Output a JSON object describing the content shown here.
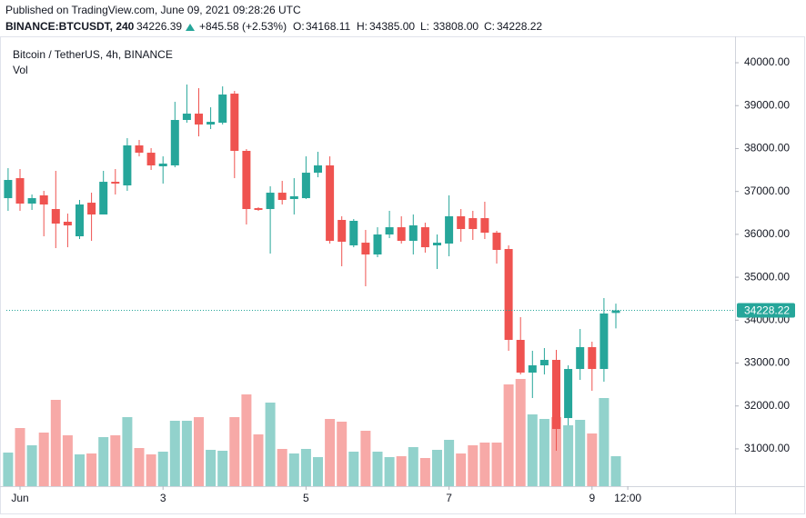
{
  "chart_data": {
    "type": "candlestick",
    "published": "Published on TradingView.com, June 09, 2021 09:28:26 UTC",
    "symbol": "BINANCE:BTCUSDT, 240",
    "last_price": 34226.39,
    "change": "+845.58 (+2.53%)",
    "ohlc_legend": [
      {
        "label": "O:",
        "value": "34168.11"
      },
      {
        "label": "H:",
        "value": "34385.00"
      },
      {
        "label": "L:",
        "value": "33808.00"
      },
      {
        "label": "C:",
        "value": "34228.22"
      }
    ],
    "title": "Bitcoin / TetherUS, 4h, BINANCE",
    "volume_label": "Vol",
    "up_color": "#26a69a",
    "down_color": "#ef5350",
    "volume_up_color": "#92d2cc",
    "volume_down_color": "#f7a9a7",
    "x": [
      -4,
      0,
      4,
      8,
      12,
      16,
      20,
      24,
      28,
      32,
      36,
      40,
      44,
      48,
      52,
      56,
      60,
      64,
      68,
      72,
      76,
      80,
      84,
      88,
      92,
      96,
      100,
      104,
      108,
      112,
      116,
      120,
      124,
      128,
      132,
      136,
      140,
      144,
      148,
      152,
      156,
      160,
      164,
      168,
      172,
      176,
      180,
      184,
      188,
      192,
      196,
      200
    ],
    "open": [
      36844,
      37310,
      36717,
      36908,
      36590,
      36294,
      35955,
      36738,
      36463,
      37225,
      37141,
      38073,
      37903,
      37586,
      37607,
      38666,
      38814,
      38560,
      38602,
      39280,
      37946,
      36611,
      36590,
      36971,
      36823,
      36844,
      37437,
      37607,
      36336,
      35743,
      35806,
      35531,
      35997,
      36166,
      35849,
      36166,
      35743,
      35785,
      36421,
      36378,
      36378,
      36039,
      35658,
      33540,
      32778,
      32947,
      33074,
      31718,
      32862,
      33371,
      32862,
      34168.11
    ],
    "high": [
      37543,
      37522,
      36929,
      37014,
      37480,
      36484,
      36802,
      36971,
      37480,
      37522,
      38242,
      38200,
      38009,
      37818,
      39089,
      39492,
      39407,
      38962,
      39449,
      39343,
      37988,
      36632,
      37120,
      37247,
      37310,
      37818,
      37924,
      37818,
      36421,
      36357,
      36103,
      36166,
      36548,
      36421,
      36463,
      36272,
      35997,
      36908,
      36590,
      36548,
      36760,
      36082,
      35743,
      34070,
      33286,
      33350,
      33307,
      32947,
      33794,
      33498,
      34515,
      34385
    ],
    "low": [
      36548,
      36548,
      36569,
      35955,
      35679,
      35700,
      35891,
      35849,
      36463,
      36929,
      37014,
      37818,
      37501,
      37183,
      37564,
      38602,
      38284,
      38454,
      38560,
      37310,
      36230,
      36548,
      35552,
      36696,
      36463,
      36823,
      37331,
      35785,
      35256,
      35700,
      34790,
      35468,
      35912,
      35785,
      35531,
      35573,
      35192,
      35489,
      35828,
      35870,
      35891,
      35319,
      33286,
      32735,
      32185,
      32735,
      30956,
      31549,
      32608,
      32354,
      32566,
      33808
    ],
    "close": [
      37268,
      36717,
      36844,
      36696,
      36251,
      36209,
      36696,
      36463,
      37225,
      37183,
      38073,
      37903,
      37607,
      37649,
      38666,
      38814,
      38560,
      38623,
      39259,
      37946,
      36590,
      36569,
      36971,
      36802,
      36887,
      37437,
      37607,
      35849,
      35828,
      36315,
      35531,
      35997,
      36166,
      35849,
      36209,
      35700,
      35806,
      36421,
      36124,
      36124,
      36039,
      35637,
      33540,
      32778,
      32947,
      33074,
      31464,
      32862,
      33371,
      32862,
      34155,
      34228.22
    ],
    "volume": [
      37,
      64,
      45,
      59,
      95,
      56,
      35,
      36,
      54,
      56,
      76,
      42,
      35,
      38,
      72,
      72,
      76,
      40,
      39,
      76,
      101,
      57,
      92,
      41,
      36,
      41,
      32,
      74,
      71,
      38,
      61,
      38,
      32,
      33,
      43,
      31,
      40,
      51,
      36,
      45,
      48,
      48,
      112,
      118,
      79,
      74,
      76,
      67,
      73,
      58,
      97,
      33
    ],
    "xlim": [
      -4.58,
      240
    ],
    "xticks": [
      {
        "value": 0,
        "label": "Jun"
      },
      {
        "value": 48,
        "label": "3"
      },
      {
        "value": 96,
        "label": "5"
      },
      {
        "value": 144,
        "label": "7"
      },
      {
        "value": 192,
        "label": "9"
      },
      {
        "value": 204,
        "label": "12:00"
      }
    ],
    "ylim": [
      30130,
      40615
    ],
    "yticks": [
      {
        "value": 31000,
        "label": "31000.00"
      },
      {
        "value": 32000,
        "label": "32000.00"
      },
      {
        "value": 33000,
        "label": "33000.00"
      },
      {
        "value": 34000,
        "label": "34000.00"
      },
      {
        "value": 35000,
        "label": "35000.00"
      },
      {
        "value": 36000,
        "label": "36000.00"
      },
      {
        "value": 37000,
        "label": "37000.00"
      },
      {
        "value": 38000,
        "label": "38000.00"
      },
      {
        "value": 39000,
        "label": "39000.00"
      },
      {
        "value": 40000,
        "label": "40000.00"
      }
    ]
  }
}
